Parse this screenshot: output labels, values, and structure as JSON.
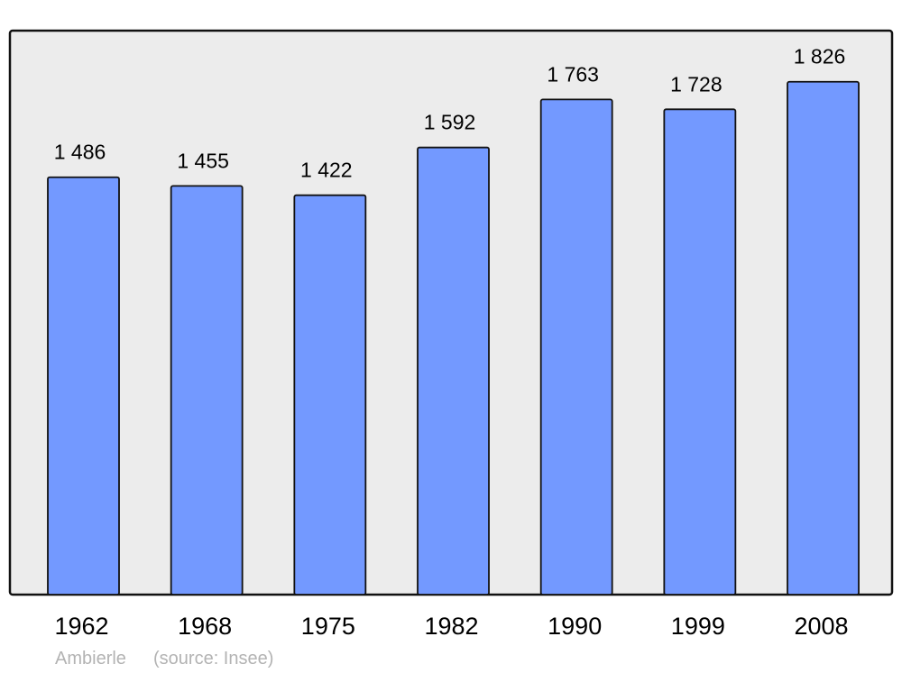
{
  "chart_data": {
    "type": "bar",
    "title": "",
    "xlabel": "",
    "ylabel": "",
    "categories": [
      "1962",
      "1968",
      "1975",
      "1982",
      "1990",
      "1999",
      "2008"
    ],
    "values": [
      1486,
      1455,
      1422,
      1592,
      1763,
      1728,
      1826
    ],
    "data_labels": [
      "1 486",
      "1 455",
      "1 422",
      "1 592",
      "1 763",
      "1 728",
      "1 826"
    ],
    "ylim": [
      0,
      2008
    ],
    "grid": false,
    "bar_color": "#7399ff",
    "background_color": "#ececec"
  },
  "footer": {
    "place": "Ambierle",
    "source": "(source: Insee)"
  }
}
